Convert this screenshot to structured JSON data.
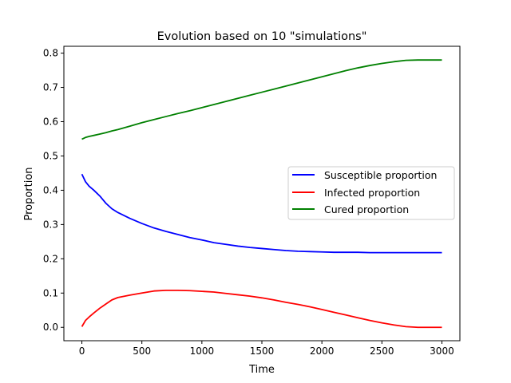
{
  "chart_data": {
    "type": "line",
    "title": "Evolution based on 10 \"simulations\"",
    "xlabel": "Time",
    "ylabel": "Proportion",
    "xlim": [
      -150,
      3150
    ],
    "ylim": [
      -0.039,
      0.82
    ],
    "xticks": [
      0,
      500,
      1000,
      1500,
      2000,
      2500,
      3000
    ],
    "xtick_labels": [
      "0",
      "500",
      "1000",
      "1500",
      "2000",
      "2500",
      "3000"
    ],
    "yticks": [
      0.0,
      0.1,
      0.2,
      0.3,
      0.4,
      0.5,
      0.6,
      0.7,
      0.8
    ],
    "ytick_labels": [
      "0.0",
      "0.1",
      "0.2",
      "0.3",
      "0.4",
      "0.5",
      "0.6",
      "0.7",
      "0.8"
    ],
    "grid": false,
    "legend": "center-right",
    "x": [
      0,
      30,
      60,
      100,
      150,
      200,
      250,
      300,
      400,
      500,
      600,
      700,
      800,
      900,
      1000,
      1100,
      1200,
      1300,
      1400,
      1500,
      1600,
      1700,
      1800,
      1900,
      2000,
      2100,
      2200,
      2300,
      2400,
      2500,
      2600,
      2700,
      2800,
      2900,
      3000
    ],
    "series": [
      {
        "name": "Susceptible proportion",
        "color": "#0000ff",
        "values": [
          0.447,
          0.425,
          0.412,
          0.4,
          0.383,
          0.362,
          0.346,
          0.335,
          0.318,
          0.303,
          0.29,
          0.28,
          0.271,
          0.262,
          0.255,
          0.247,
          0.242,
          0.237,
          0.233,
          0.23,
          0.227,
          0.224,
          0.222,
          0.221,
          0.22,
          0.219,
          0.219,
          0.219,
          0.218,
          0.218,
          0.218,
          0.218,
          0.218,
          0.218,
          0.218
        ]
      },
      {
        "name": "Infected proportion",
        "color": "#ff0000",
        "values": [
          0.002,
          0.02,
          0.03,
          0.042,
          0.056,
          0.068,
          0.08,
          0.087,
          0.094,
          0.1,
          0.106,
          0.108,
          0.108,
          0.107,
          0.105,
          0.103,
          0.099,
          0.095,
          0.091,
          0.086,
          0.08,
          0.073,
          0.067,
          0.06,
          0.052,
          0.044,
          0.036,
          0.028,
          0.02,
          0.013,
          0.007,
          0.002,
          0.0,
          0.0,
          0.0
        ]
      },
      {
        "name": "Cured proportion",
        "color": "#008000",
        "values": [
          0.549,
          0.554,
          0.557,
          0.56,
          0.564,
          0.568,
          0.573,
          0.577,
          0.587,
          0.597,
          0.606,
          0.615,
          0.624,
          0.632,
          0.641,
          0.65,
          0.659,
          0.668,
          0.677,
          0.686,
          0.695,
          0.704,
          0.713,
          0.722,
          0.731,
          0.74,
          0.749,
          0.757,
          0.764,
          0.77,
          0.775,
          0.779,
          0.78,
          0.78,
          0.78
        ]
      }
    ]
  }
}
